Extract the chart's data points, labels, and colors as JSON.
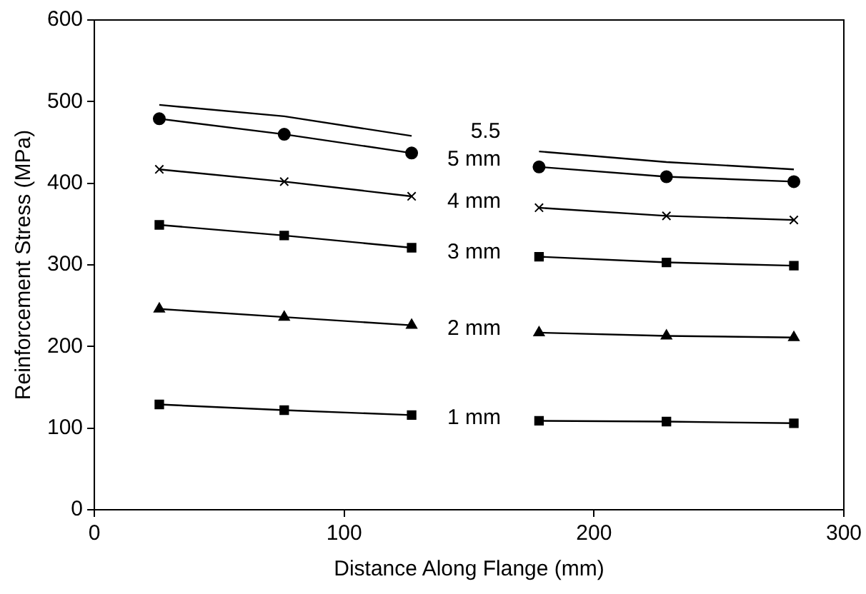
{
  "chart_data": {
    "type": "line",
    "xlabel": "Distance Along Flange (mm)",
    "ylabel": "Reinforcement Stress (MPa)",
    "x": [
      26,
      76,
      127,
      152,
      178,
      229,
      280
    ],
    "series": [
      {
        "name": "5.5",
        "color": "#000000",
        "marker": "none",
        "values": [
          496,
          482,
          458,
          null,
          439,
          426,
          417
        ]
      },
      {
        "name": "5 mm",
        "color": "#000000",
        "marker": "circle",
        "values": [
          479,
          460,
          437,
          null,
          420,
          408,
          402
        ]
      },
      {
        "name": "4 mm",
        "color": "#000000",
        "marker": "cross",
        "values": [
          417,
          402,
          384,
          null,
          370,
          360,
          355
        ]
      },
      {
        "name": "3 mm",
        "color": "#000000",
        "marker": "square",
        "values": [
          349,
          336,
          321,
          null,
          310,
          303,
          299
        ]
      },
      {
        "name": "2 mm",
        "color": "#000000",
        "marker": "triangle",
        "values": [
          246,
          236,
          226,
          null,
          217,
          213,
          211
        ]
      },
      {
        "name": "1 mm",
        "color": "#000000",
        "marker": "square",
        "values": [
          129,
          122,
          116,
          null,
          109,
          108,
          106
        ]
      }
    ],
    "xlim": [
      0,
      300
    ],
    "xticks": [
      0,
      100,
      200,
      300
    ],
    "ylim": [
      0,
      600
    ],
    "yticks": [
      0,
      100,
      200,
      300,
      400,
      500,
      600
    ],
    "grid": false,
    "legend": false,
    "line_style": "solid"
  }
}
